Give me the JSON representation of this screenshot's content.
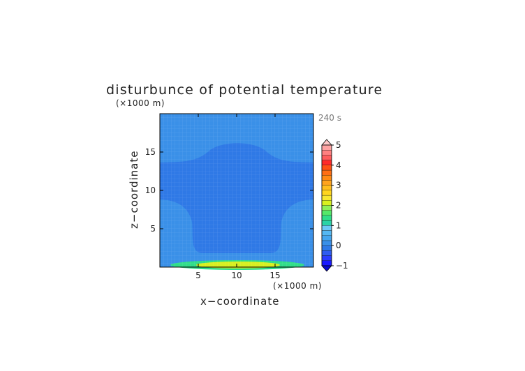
{
  "chart_data": {
    "type": "heatmap",
    "title": "disturbunce of potential temperature",
    "time_label": "240 s",
    "xlabel": "x−coordinate",
    "ylabel": "z−coordinate",
    "x_unit": "(×1000 m)",
    "y_unit": "(×1000 m)",
    "xlim": [
      0,
      20
    ],
    "ylim": [
      0,
      20
    ],
    "x_ticks": [
      "5",
      "10",
      "15"
    ],
    "y_ticks": [
      "5",
      "10",
      "15"
    ],
    "x_tick_values": [
      5,
      10,
      15
    ],
    "y_tick_values": [
      5,
      10,
      15
    ],
    "colorbar": {
      "range": [
        -1,
        5
      ],
      "step": 0.25,
      "labels": [
        "−1",
        "0",
        "1",
        "2",
        "3",
        "4",
        "5"
      ],
      "label_values": [
        -1,
        0,
        1,
        2,
        3,
        4,
        5
      ],
      "colors": [
        "#1a1aff",
        "#2a3cff",
        "#2f5cf0",
        "#2f79e6",
        "#3a90e8",
        "#45a6ee",
        "#55b8f2",
        "#6cc8f6",
        "#2ad3a6",
        "#30dd8a",
        "#55e86a",
        "#8cf05a",
        "#d8f020",
        "#f8e830",
        "#ffd51e",
        "#ffbe1e",
        "#ffa31e",
        "#ff8a14",
        "#ff6e14",
        "#ff5014",
        "#ff2a2a",
        "#ff5c5c",
        "#ff8080",
        "#ffa3a3"
      ]
    },
    "regions": [
      {
        "level": "-0.25 to 0",
        "color": "#2f79e6",
        "description": "mushroom-shaped cooler plume"
      },
      {
        "level": "0 to 0.25",
        "color": "#3a90e8",
        "description": "background"
      },
      {
        "level": "0.75 to 1.25",
        "color": "#30dd8a",
        "description": "near-surface warm layer"
      },
      {
        "level": "1.75 to 2.25",
        "color": "#d8f020",
        "description": "near-surface maximum"
      }
    ]
  }
}
